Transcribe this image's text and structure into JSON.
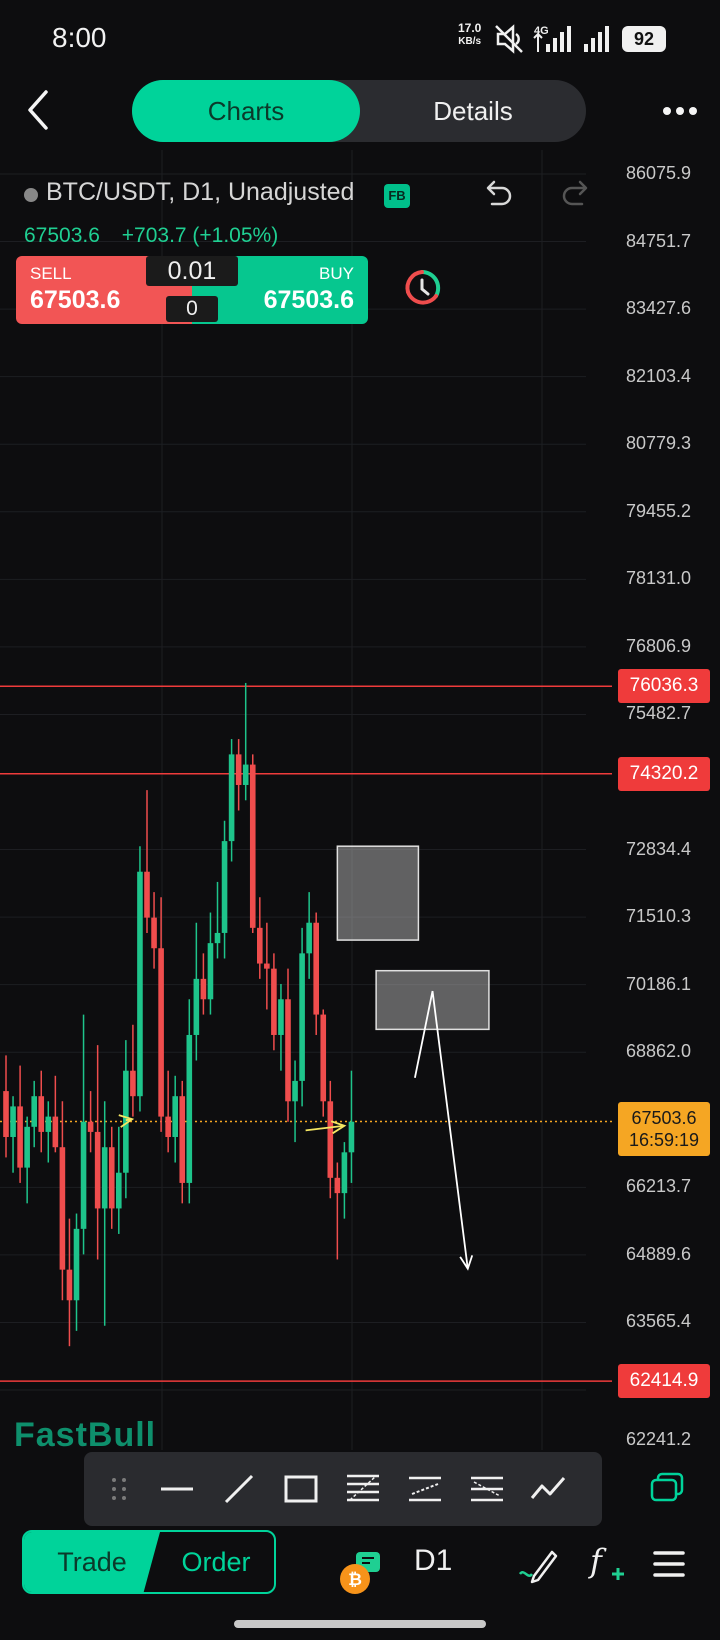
{
  "status_bar": {
    "time": "8:00",
    "net_speed_value": "17.0",
    "net_speed_unit": "KB/s",
    "network": "4G",
    "battery": "92",
    "icons": [
      "mute-icon",
      "signal-4g-icon",
      "signal-icon"
    ]
  },
  "nav": {
    "tabs": [
      {
        "label": "Charts",
        "active": true
      },
      {
        "label": "Details",
        "active": false
      }
    ],
    "back_icon": "back-chevron-icon",
    "more_icon": "more-dots-icon"
  },
  "symbol": {
    "title": "BTC/USDT, D1, Unadjusted",
    "badge": "FB",
    "last": "67503.6",
    "change": "+703.7 (+1.05%)"
  },
  "trade_panel": {
    "sell_label": "SELL",
    "sell_price": "67503.6",
    "buy_label": "BUY",
    "buy_price": "67503.6",
    "lot": "0.01",
    "spread": "0"
  },
  "chart_data": {
    "type": "candlestick",
    "price_axis_ticks": [
      "86075.9",
      "84751.7",
      "83427.6",
      "82103.4",
      "80779.3",
      "79455.2",
      "78131.0",
      "76806.9",
      "75482.7",
      "72834.4",
      "71510.3",
      "70186.1",
      "68862.0",
      "66213.7",
      "64889.6",
      "63565.4",
      "62241.2"
    ],
    "ylim": [
      61917.1,
      87300
    ],
    "horizontal_lines": [
      {
        "price": 76036.3,
        "label": "76036.3",
        "color": "#ef3b3b"
      },
      {
        "price": 74320.2,
        "label": "74320.2",
        "color": "#ef3b3b"
      },
      {
        "price": 62414.9,
        "label": "62414.9",
        "color": "#ef3b3b"
      }
    ],
    "current_price": {
      "price": 67503.6,
      "label": "67503.6",
      "countdown": "16:59:19",
      "color": "#f5a623"
    },
    "rectangles": [
      {
        "x0": 47,
        "x1": 58.5,
        "y_top": 72900,
        "y_bottom": 71060
      },
      {
        "x0": 52.5,
        "x1": 68.5,
        "y_top": 70460,
        "y_bottom": 69310
      }
    ],
    "arrows": [
      {
        "color": "#ffffff",
        "points": [
          [
            58,
            68360
          ],
          [
            60.5,
            70060
          ],
          [
            65.5,
            64620
          ]
        ]
      },
      {
        "color": "#f5e663",
        "points": [
          [
            17,
            67530
          ],
          [
            17.9,
            67550
          ]
        ]
      },
      {
        "color": "#f5e663",
        "points": [
          [
            42.5,
            67330
          ],
          [
            48,
            67420
          ]
        ]
      }
    ],
    "candles_ohlc": [
      [
        68100,
        68800,
        66800,
        67200
      ],
      [
        67200,
        68000,
        66500,
        67800
      ],
      [
        67800,
        68600,
        66300,
        66600
      ],
      [
        66600,
        67600,
        65900,
        67400
      ],
      [
        67400,
        68300,
        67000,
        68000
      ],
      [
        68000,
        68500,
        66900,
        67300
      ],
      [
        67300,
        67900,
        66700,
        67600
      ],
      [
        67600,
        68400,
        66900,
        67000
      ],
      [
        67000,
        67900,
        64000,
        64600
      ],
      [
        64600,
        65600,
        63100,
        64000
      ],
      [
        64000,
        65700,
        63400,
        65400
      ],
      [
        65400,
        69600,
        64900,
        67500
      ],
      [
        67500,
        68100,
        66900,
        67300
      ],
      [
        67300,
        69000,
        64800,
        65800
      ],
      [
        65800,
        67900,
        63500,
        67000
      ],
      [
        67000,
        67400,
        65400,
        65800
      ],
      [
        65800,
        67400,
        65300,
        66500
      ],
      [
        66500,
        69100,
        66000,
        68500
      ],
      [
        68500,
        69400,
        67600,
        68000
      ],
      [
        68000,
        72900,
        67700,
        72400
      ],
      [
        72400,
        74000,
        71200,
        71500
      ],
      [
        71500,
        72000,
        70500,
        70900
      ],
      [
        70900,
        71900,
        67300,
        67600
      ],
      [
        67600,
        68500,
        66900,
        67200
      ],
      [
        67200,
        68400,
        66700,
        68000
      ],
      [
        68000,
        68300,
        65900,
        66300
      ],
      [
        66300,
        69900,
        65900,
        69200
      ],
      [
        69200,
        71400,
        68700,
        70300
      ],
      [
        70300,
        70800,
        69600,
        69900
      ],
      [
        69900,
        71600,
        69600,
        71000
      ],
      [
        71000,
        72200,
        70700,
        71200
      ],
      [
        71200,
        73400,
        70700,
        73000
      ],
      [
        73000,
        75000,
        72600,
        74700
      ],
      [
        74700,
        75000,
        73600,
        74100
      ],
      [
        74100,
        76100,
        73800,
        74500
      ],
      [
        74500,
        74700,
        71200,
        71300
      ],
      [
        71300,
        71900,
        70300,
        70600
      ],
      [
        70600,
        71400,
        69700,
        70500
      ],
      [
        70500,
        70800,
        68900,
        69200
      ],
      [
        69200,
        70200,
        68500,
        69900
      ],
      [
        69900,
        70500,
        67500,
        67900
      ],
      [
        67900,
        68700,
        67100,
        68300
      ],
      [
        68300,
        71300,
        67800,
        70800
      ],
      [
        70800,
        72000,
        70300,
        71400
      ],
      [
        71400,
        71600,
        69200,
        69600
      ],
      [
        69600,
        69700,
        67600,
        67900
      ],
      [
        67900,
        68300,
        66000,
        66400
      ],
      [
        66400,
        66700,
        64800,
        66100
      ],
      [
        66100,
        67100,
        65600,
        66900
      ],
      [
        66900,
        68500,
        66300,
        67500
      ]
    ],
    "colors": {
      "up": "#1ec48b",
      "down": "#ef4d4d"
    }
  },
  "watermark": "FastBull",
  "draw_toolbar": {
    "tools": [
      "drag-handle-icon",
      "horizontal-line-icon",
      "trend-line-icon",
      "rectangle-icon",
      "fib-retracement-icon",
      "parallel-channel-icon",
      "fib-fan-icon",
      "polyline-icon"
    ]
  },
  "bottom_bar": {
    "trade_label": "Trade",
    "order_label": "Order",
    "timeframe": "D1",
    "icons": [
      "bitcoin-coin-icon",
      "draw-pen-icon",
      "indicator-fx-icon",
      "menu-icon"
    ]
  }
}
